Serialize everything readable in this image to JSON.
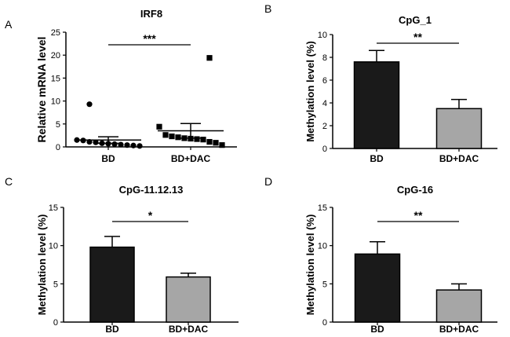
{
  "chart_data": [
    {
      "panel": "A",
      "type": "scatter",
      "title": "IRF8",
      "ylabel": "Relative mRNA level",
      "xlabel": "",
      "ylim": [
        0,
        25
      ],
      "yticks": [
        "0",
        "5",
        "10",
        "15",
        "20",
        "25"
      ],
      "categories": [
        "BD",
        "BD+DAC"
      ],
      "series": [
        {
          "name": "BD",
          "marker": "circle",
          "values": [
            9.3,
            1.5,
            1.4,
            1.1,
            1.0,
            0.8,
            0.7,
            0.6,
            0.5,
            0.4,
            0.3,
            0.2
          ],
          "mean": 1.5,
          "sem": 0.7
        },
        {
          "name": "BD+DAC",
          "marker": "square",
          "values": [
            19.4,
            4.4,
            2.6,
            2.3,
            2.1,
            1.9,
            1.8,
            1.7,
            1.6,
            1.1,
            0.9,
            0.4
          ],
          "mean": 3.5,
          "sem": 1.6
        }
      ],
      "significance": "***"
    },
    {
      "panel": "B",
      "type": "bar",
      "title": "CpG_1",
      "ylabel": "Methylation level (%)",
      "xlabel": "",
      "ylim": [
        0,
        10
      ],
      "yticks": [
        "0",
        "2",
        "4",
        "6",
        "8",
        "10"
      ],
      "categories": [
        "BD",
        "BD+DAC"
      ],
      "values": [
        7.6,
        3.5
      ],
      "errors": [
        1.0,
        0.8
      ],
      "colors": [
        "#1a1a1a",
        "#a6a6a6"
      ],
      "significance": "**"
    },
    {
      "panel": "C",
      "type": "bar",
      "title": "CpG-11.12.13",
      "ylabel": "Methylation level (%)",
      "xlabel": "",
      "ylim": [
        0,
        15
      ],
      "yticks": [
        "0",
        "5",
        "10",
        "15"
      ],
      "categories": [
        "BD",
        "BD+DAC"
      ],
      "values": [
        9.8,
        5.9
      ],
      "errors": [
        1.4,
        0.5
      ],
      "colors": [
        "#1a1a1a",
        "#a6a6a6"
      ],
      "significance": "*"
    },
    {
      "panel": "D",
      "type": "bar",
      "title": "CpG-16",
      "ylabel": "Methylation level (%)",
      "xlabel": "",
      "ylim": [
        0,
        15
      ],
      "yticks": [
        "0",
        "5",
        "10",
        "15"
      ],
      "categories": [
        "BD",
        "BD+DAC"
      ],
      "values": [
        8.9,
        4.2
      ],
      "errors": [
        1.6,
        0.8
      ],
      "colors": [
        "#1a1a1a",
        "#a6a6a6"
      ],
      "significance": "**"
    }
  ]
}
